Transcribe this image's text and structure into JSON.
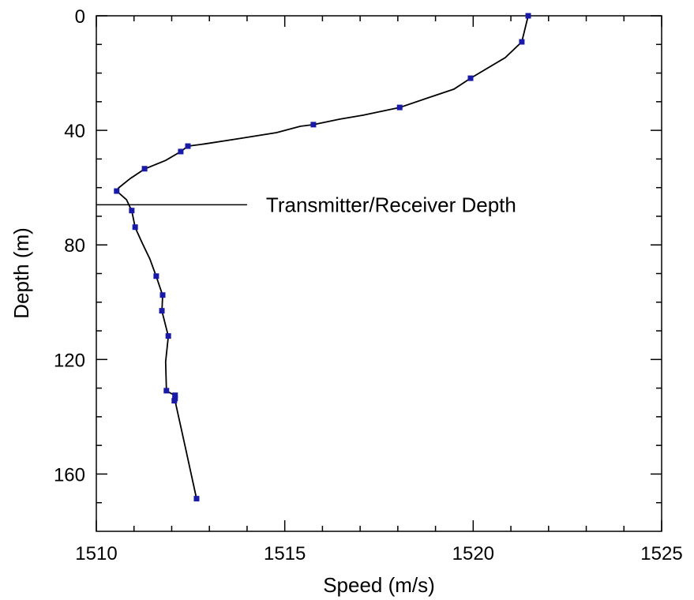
{
  "chart_data": {
    "type": "line",
    "xlabel": "Speed (m/s)",
    "ylabel": "Depth (m)",
    "xlim": [
      1510,
      1525
    ],
    "xticks": [
      1510,
      1515,
      1520,
      1525
    ],
    "xminorticks": [
      1511,
      1512,
      1513,
      1514,
      1516,
      1517,
      1518,
      1519,
      1521,
      1522,
      1523,
      1524
    ],
    "ylim": [
      0,
      180
    ],
    "yticks": [
      0,
      40,
      80,
      120,
      160
    ],
    "yminorticks": [
      10,
      20,
      30,
      50,
      60,
      70,
      90,
      100,
      110,
      130,
      140,
      150,
      170
    ],
    "y_inverted": true,
    "series": [
      {
        "color": "#000000",
        "style": "line",
        "x": [
          1521.46,
          1521.29,
          1520.85,
          1519.93,
          1519.49,
          1518.86,
          1518.05,
          1517.08,
          1516.45,
          1515.76,
          1515.41,
          1514.78,
          1513.73,
          1512.89,
          1512.43,
          1512.24,
          1511.84,
          1511.28,
          1510.9,
          1510.59,
          1510.54,
          1510.8,
          1510.94,
          1511.03,
          1511.22,
          1511.42,
          1511.59,
          1511.76,
          1511.74,
          1511.91,
          1511.84,
          1511.86,
          1512.09,
          1512.09,
          1512.37,
          1512.66
        ],
        "values": [
          0,
          9.1,
          14.6,
          21.8,
          25.6,
          28.4,
          32,
          34.7,
          36.1,
          38,
          38.6,
          40.8,
          43,
          44.7,
          45.5,
          47.4,
          50.5,
          53.5,
          56.8,
          60.1,
          61.2,
          64.2,
          68.1,
          73.9,
          79.4,
          84.9,
          91,
          97.6,
          103.1,
          111.9,
          120.8,
          131,
          132.6,
          134.5,
          151.1,
          168.7
        ]
      },
      {
        "color": "#1a1aa8",
        "style": "markers",
        "x": [
          1521.46,
          1521.29,
          1519.93,
          1518.05,
          1515.76,
          1512.43,
          1512.24,
          1511.28,
          1510.54,
          1510.94,
          1511.03,
          1511.59,
          1511.76,
          1511.74,
          1511.91,
          1511.86,
          1512.09,
          1512.09,
          1512.07,
          1512.66
        ],
        "values": [
          0,
          9.1,
          21.8,
          32,
          38,
          45.5,
          47.4,
          53.4,
          61.2,
          68,
          73.8,
          90.9,
          97.5,
          103,
          111.8,
          130.9,
          132.5,
          133.6,
          134.4,
          168.6
        ]
      }
    ],
    "annotation": {
      "text": "Transmitter/Receiver Depth",
      "y": 66,
      "x": [
        1510,
        1514
      ]
    }
  }
}
